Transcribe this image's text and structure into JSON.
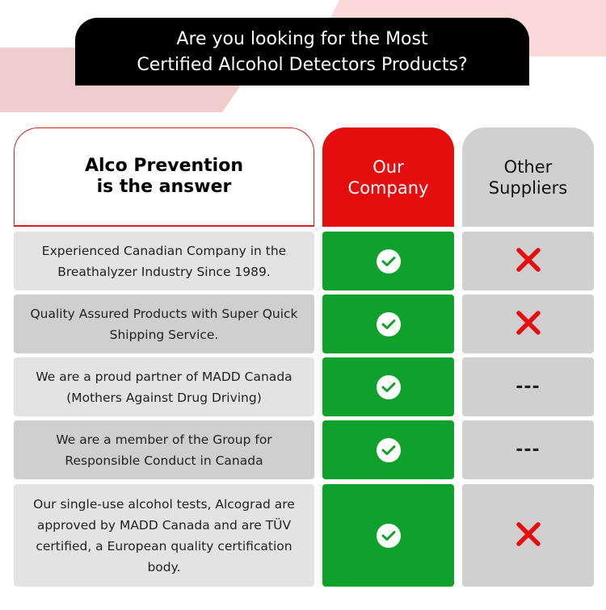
{
  "banner": {
    "line1": "Are you looking for the Most",
    "line2": "Certified Alcohol Detectors Products?"
  },
  "header": {
    "brand_line1": "Alco Prevention",
    "brand_line2": "is the answer",
    "our_line1": "Our",
    "our_line2": "Company",
    "other_line1": "Other",
    "other_line2": "Suppliers"
  },
  "colors": {
    "red": "#e50e0e",
    "green": "#10a02c",
    "gray": "#d0d0d0",
    "pink": "#f7d3d3"
  },
  "rows": [
    {
      "text": "Experienced Canadian Company in the Breathalyzer Industry Since 1989.",
      "ours": "check-icon",
      "others": "x-icon"
    },
    {
      "text": "Quality Assured Products with Super Quick  Shipping Service.",
      "ours": "check-icon",
      "others": "x-icon"
    },
    {
      "text": "We are a proud partner of MADD Canada (Mothers Against Drug Driving)",
      "ours": "check-icon",
      "others": "---"
    },
    {
      "text": "We are a member of the Group for Responsible Conduct in Canada",
      "ours": "check-icon",
      "others": "---"
    },
    {
      "text": "Our single-use alcohol tests, Alcograd are approved by MADD Canada and are TÜV certified, a European quality certification body.",
      "ours": "check-icon",
      "others": "x-icon"
    }
  ]
}
